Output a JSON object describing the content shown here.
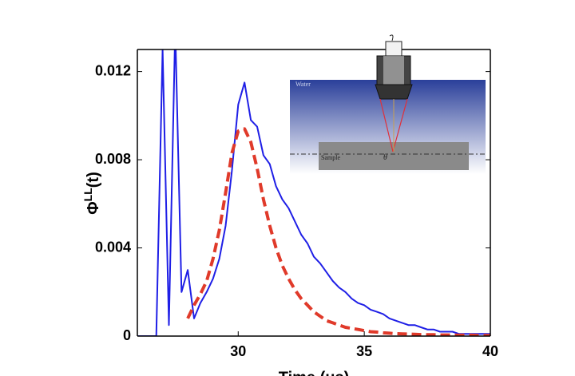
{
  "chart_data": {
    "type": "line",
    "y_label": {
      "symbol": "Φ",
      "superscript": "LL",
      "argument": "(t)"
    },
    "x_label": "Time (μs)",
    "x": [
      26,
      26.25,
      26.5,
      26.75,
      27,
      27.25,
      27.5,
      27.75,
      28,
      28.25,
      28.5,
      28.75,
      29,
      29.25,
      29.5,
      29.75,
      30,
      30.25,
      30.5,
      30.75,
      31,
      31.25,
      31.5,
      31.75,
      32,
      32.25,
      32.5,
      32.75,
      33,
      33.25,
      33.5,
      33.75,
      34,
      34.25,
      34.5,
      34.75,
      35,
      35.25,
      35.5,
      35.75,
      36,
      36.25,
      36.5,
      36.75,
      37,
      37.25,
      37.5,
      37.75,
      38,
      38.25,
      38.5,
      38.75,
      39,
      39.25,
      39.5,
      39.75,
      40
    ],
    "series": [
      {
        "color": "#1f1fe6",
        "style": "solid",
        "values": [
          0,
          0,
          0,
          0,
          0.013,
          0.0005,
          0.014,
          0.002,
          0.003,
          0.0008,
          0.0015,
          0.002,
          0.0026,
          0.0035,
          0.005,
          0.0075,
          0.0105,
          0.0115,
          0.0098,
          0.0095,
          0.0082,
          0.0078,
          0.0068,
          0.0062,
          0.0058,
          0.0052,
          0.0046,
          0.0042,
          0.0036,
          0.0033,
          0.0029,
          0.0025,
          0.0022,
          0.002,
          0.0017,
          0.0015,
          0.0014,
          0.0012,
          0.0011,
          0.001,
          0.0008,
          0.0007,
          0.0006,
          0.0005,
          0.0005,
          0.0004,
          0.0003,
          0.0003,
          0.0002,
          0.0002,
          0.0002,
          0.0001,
          0.0001,
          0.0001,
          0.0001,
          0.0001,
          0.0001
        ]
      },
      {
        "color": "#e03a2a",
        "style": "dashed",
        "values": [
          null,
          null,
          null,
          null,
          null,
          null,
          null,
          null,
          0.0008,
          0.0014,
          0.0019,
          0.0025,
          0.0035,
          0.0048,
          0.0065,
          0.0083,
          0.0093,
          0.0094,
          0.0088,
          0.0076,
          0.0062,
          0.005,
          0.004,
          0.0032,
          0.0026,
          0.0021,
          0.0017,
          0.0014,
          0.0011,
          0.0009,
          0.0007,
          0.0006,
          0.0005,
          0.0004,
          0.00035,
          0.0003,
          0.00025,
          0.0002,
          0.00018,
          0.00015,
          0.00013,
          0.00011,
          0.0001,
          9e-05,
          8e-05,
          7e-05,
          6e-05,
          6e-05,
          5e-05,
          5e-05,
          5e-05,
          4e-05,
          4e-05,
          4e-05,
          3e-05,
          3e-05,
          3e-05
        ]
      }
    ],
    "xlim": [
      26,
      40
    ],
    "xticks": [
      30,
      35,
      40
    ],
    "ylim": [
      0,
      0.013
    ],
    "yticks": [
      0,
      0.004,
      0.008,
      0.012
    ],
    "inset": {
      "water": "Water",
      "sample": "Sample",
      "angle": "θ"
    }
  }
}
